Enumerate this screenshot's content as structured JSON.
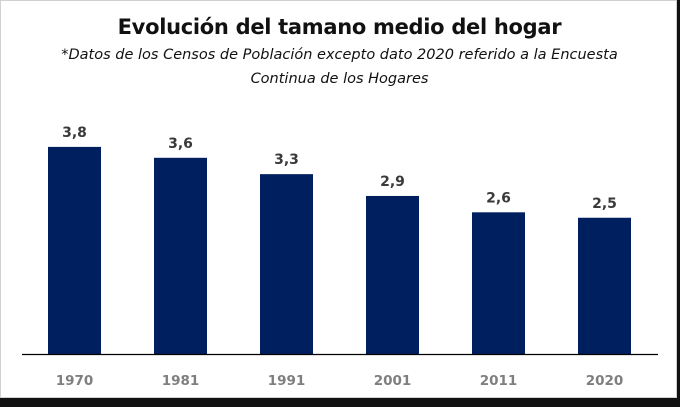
{
  "chart_data": {
    "type": "bar",
    "title": "Evolución del tamano medio del hogar",
    "subtitle_lines": [
      "*Datos de los Censos de Población excepto dato 2020 referido a la Encuesta",
      "Continua de los Hogares"
    ],
    "categories": [
      "1970",
      "1981",
      "1991",
      "2001",
      "2011",
      "2020"
    ],
    "values": [
      3.8,
      3.6,
      3.3,
      2.9,
      2.6,
      2.5
    ],
    "data_labels": [
      "3,8",
      "3,6",
      "3,3",
      "2,9",
      "2,6",
      "2,5"
    ],
    "xlabel": "",
    "ylabel": "",
    "ylim": [
      0,
      3.8
    ],
    "grid": false,
    "legend": "none",
    "bar_color": "#001f5f"
  }
}
